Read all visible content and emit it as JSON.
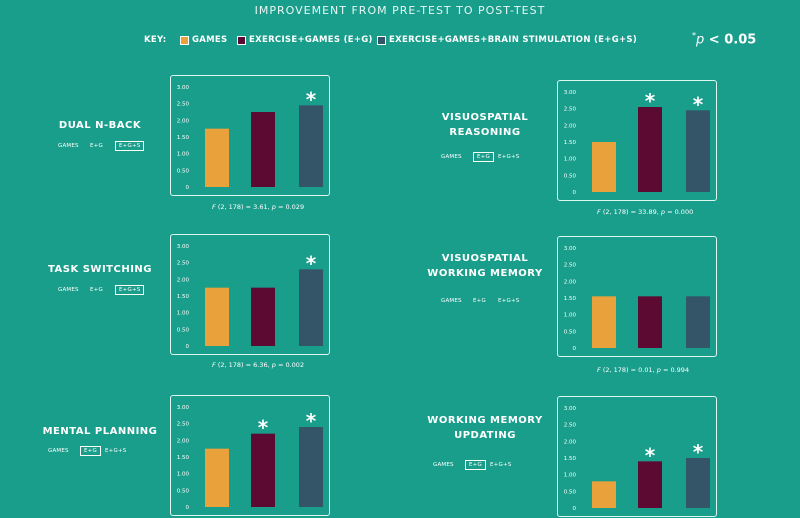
{
  "title": "IMPROVEMENT FROM PRE-TEST TO POST-TEST",
  "key": {
    "label": "KEY:",
    "items": [
      {
        "label": "GAMES",
        "color": "#e9a23b"
      },
      {
        "label": "EXERCISE+GAMES (E+G)",
        "color": "#5c0a32"
      },
      {
        "label": "EXERCISE+GAMES+BRAIN STIMULATION (E+G+S)",
        "color": "#345468"
      }
    ]
  },
  "significance": {
    "symbol": "*",
    "p": "p",
    "text": "< 0.05"
  },
  "toggle_labels": [
    "GAMES",
    "E+G",
    "E+G+S"
  ],
  "colors": [
    "#e9a23b",
    "#5c0a32",
    "#345468"
  ],
  "star_symbol": "*",
  "chart_data": [
    {
      "type": "bar",
      "title": "DUAL N-BACK",
      "categories": [
        "GAMES",
        "E+G",
        "E+G+S"
      ],
      "values": [
        1.75,
        2.25,
        2.45
      ],
      "significant": [
        false,
        false,
        true
      ],
      "ylim": [
        0,
        3
      ],
      "yticks": [
        "0",
        "0.50",
        "1.00",
        "1.50",
        "2.00",
        "2.50",
        "3.00"
      ],
      "selected_toggle": 2,
      "stat": {
        "f": "F",
        "df": "(2, 178) = 3.61,",
        "p": "p",
        "pval": "= 0.029"
      }
    },
    {
      "type": "bar",
      "title": "VISUOSPATIAL REASONING",
      "categories": [
        "GAMES",
        "E+G",
        "E+G+S"
      ],
      "values": [
        1.5,
        2.55,
        2.45
      ],
      "significant": [
        false,
        true,
        true
      ],
      "ylim": [
        0,
        3
      ],
      "yticks": [
        "0",
        "0.50",
        "1.00",
        "1.50",
        "2.00",
        "2.50",
        "3.00"
      ],
      "selected_toggle": 1,
      "stat": {
        "f": "F",
        "df": "(2, 178) = 33.89,",
        "p": "p",
        "pval": "= 0.000"
      }
    },
    {
      "type": "bar",
      "title": "TASK SWITCHING",
      "categories": [
        "GAMES",
        "E+G",
        "E+G+S"
      ],
      "values": [
        1.75,
        1.75,
        2.3
      ],
      "significant": [
        false,
        false,
        true
      ],
      "ylim": [
        0,
        3
      ],
      "yticks": [
        "0",
        "0.50",
        "1.00",
        "1.50",
        "2.00",
        "2.50",
        "3.00"
      ],
      "selected_toggle": 2,
      "stat": {
        "f": "F",
        "df": "(2, 178) = 6.36,",
        "p": "p",
        "pval": "= 0.002"
      }
    },
    {
      "type": "bar",
      "title": "VISUOSPATIAL WORKING MEMORY",
      "categories": [
        "GAMES",
        "E+G",
        "E+G+S"
      ],
      "values": [
        1.55,
        1.55,
        1.55
      ],
      "significant": [
        false,
        false,
        false
      ],
      "ylim": [
        0,
        3
      ],
      "yticks": [
        "0",
        "0.50",
        "1.00",
        "1.50",
        "2.00",
        "2.50",
        "3.00"
      ],
      "selected_toggle": -1,
      "stat": {
        "f": "F",
        "df": "(2, 178) = 0.01,",
        "p": "p",
        "pval": "= 0.994"
      }
    },
    {
      "type": "bar",
      "title": "MENTAL PLANNING",
      "categories": [
        "GAMES",
        "E+G",
        "E+G+S"
      ],
      "values": [
        1.75,
        2.2,
        2.4
      ],
      "significant": [
        false,
        true,
        true
      ],
      "ylim": [
        0,
        3
      ],
      "yticks": [
        "0",
        "0.50",
        "1.00",
        "1.50",
        "2.00",
        "2.50",
        "3.00"
      ],
      "selected_toggle": 1,
      "stat": null
    },
    {
      "type": "bar",
      "title": "WORKING MEMORY UPDATING",
      "categories": [
        "GAMES",
        "E+G",
        "E+G+S"
      ],
      "values": [
        0.8,
        1.4,
        1.5
      ],
      "significant": [
        false,
        true,
        true
      ],
      "ylim": [
        0,
        3
      ],
      "yticks": [
        "0",
        "0.50",
        "1.00",
        "1.50",
        "2.00",
        "2.50",
        "3.00"
      ],
      "selected_toggle": 1,
      "stat": null
    }
  ]
}
